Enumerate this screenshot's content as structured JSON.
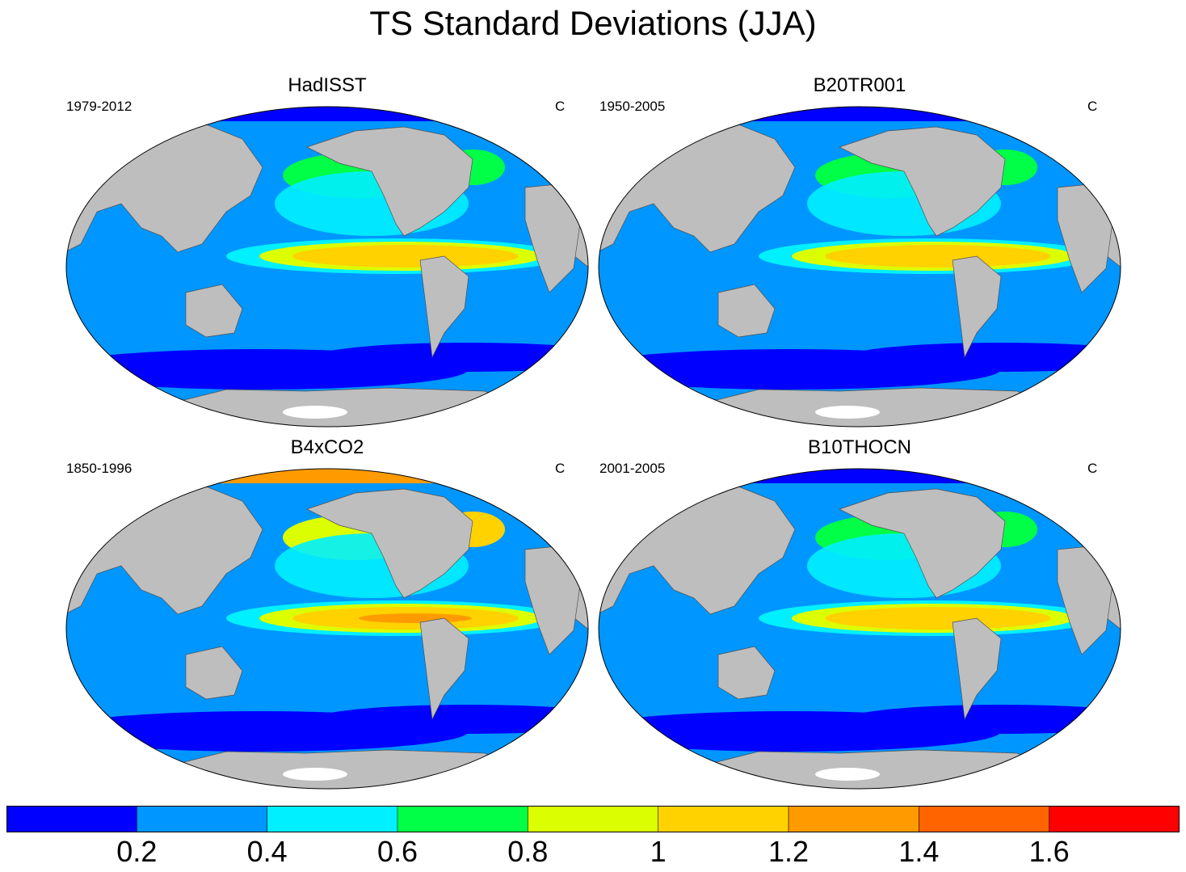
{
  "title": "TS Standard Deviations (JJA)",
  "units": "C",
  "panels": [
    {
      "title": "HadISST",
      "period": "1979-2012",
      "units": "C",
      "tropical_max": 1.3,
      "arctic_level": 0.1
    },
    {
      "title": "B20TR001",
      "period": "1950-2005",
      "units": "C",
      "tropical_max": 1.3,
      "arctic_level": 0.1
    },
    {
      "title": "B4xCO2",
      "period": "1850-1996",
      "units": "C",
      "tropical_max": 1.5,
      "arctic_level": 1.3
    },
    {
      "title": "B10THOCN",
      "period": "2001-2005",
      "units": "C",
      "tropical_max": 1.0,
      "arctic_level": 0.1
    }
  ],
  "colorbar": {
    "colors": [
      "#0000ff",
      "#0096ff",
      "#00f0ff",
      "#00ff46",
      "#dcff00",
      "#ffd200",
      "#ff9b00",
      "#ff6400",
      "#ff0000"
    ],
    "labels": [
      "0.2",
      "0.4",
      "0.6",
      "0.8",
      "1",
      "1.2",
      "1.4",
      "1.6"
    ]
  },
  "colors": {
    "land": "#bebebe",
    "ice": "#ffffff"
  }
}
